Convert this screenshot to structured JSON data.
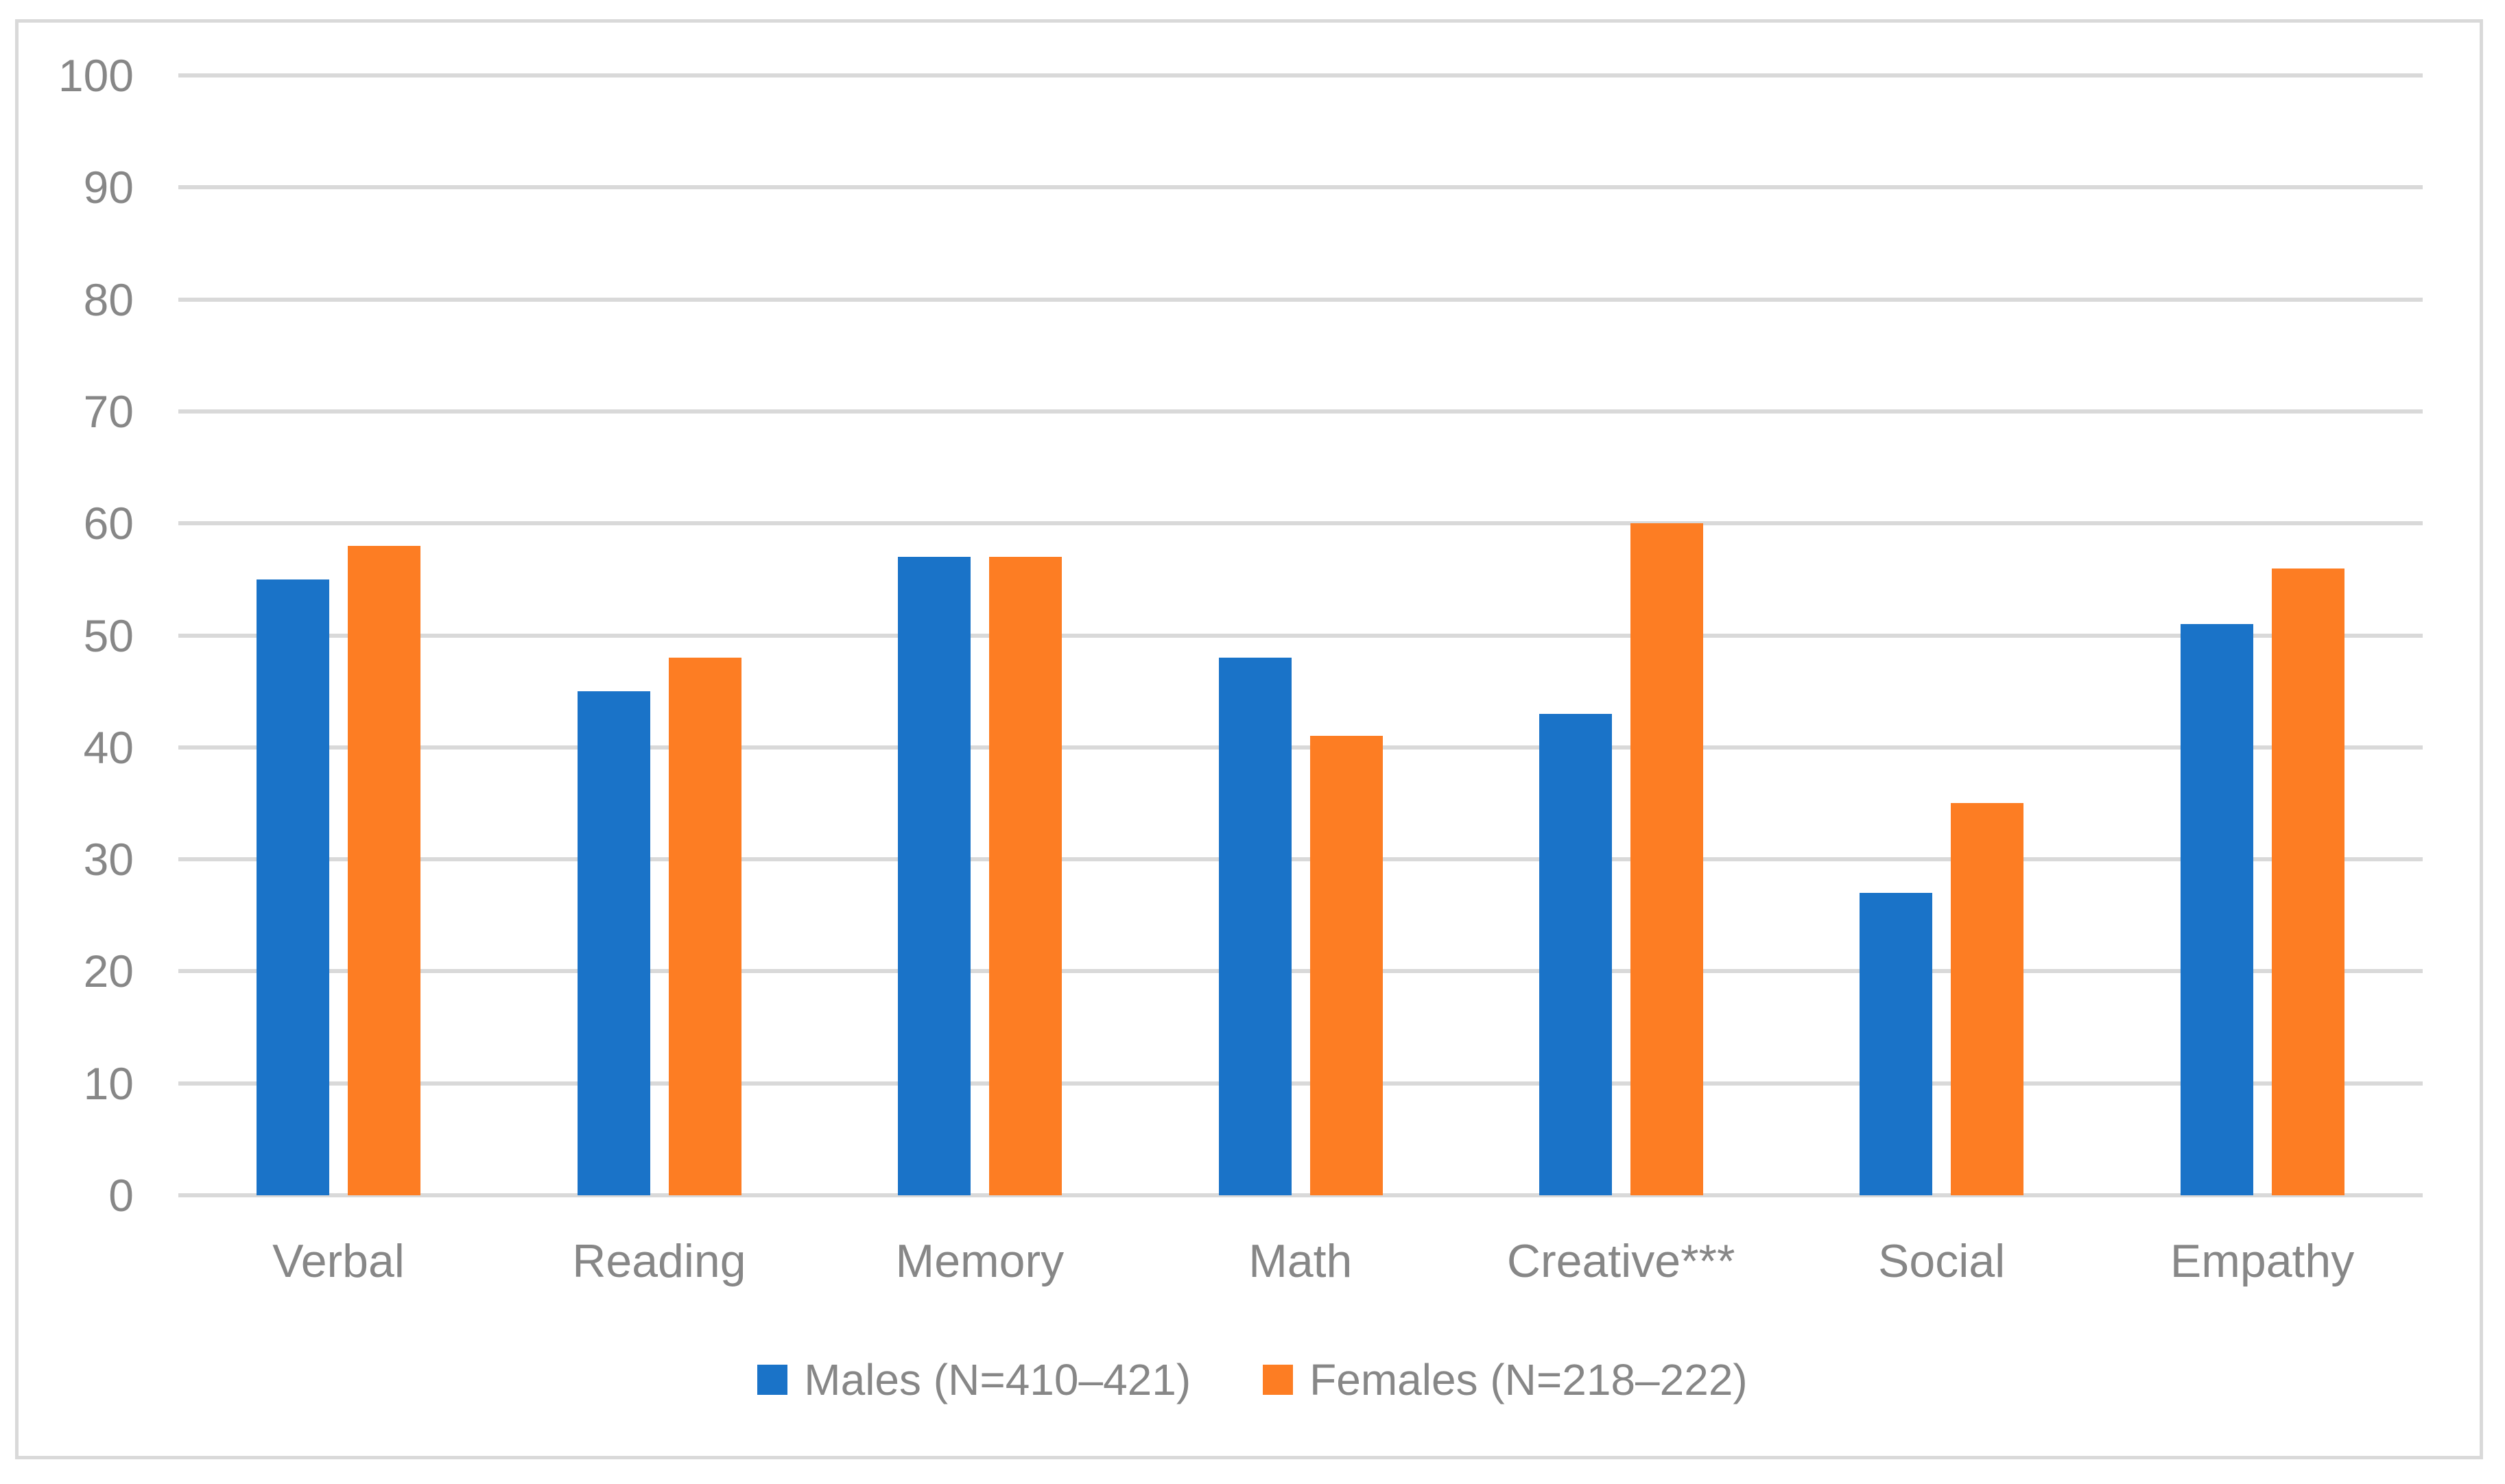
{
  "chart_data": {
    "type": "bar",
    "title": "",
    "xlabel": "",
    "ylabel": "",
    "categories": [
      "Verbal",
      "Reading",
      "Memory",
      "Math",
      "Creative***",
      "Social",
      "Empathy"
    ],
    "series": [
      {
        "name": "Males (N=410–421)",
        "color": "#1A73C8",
        "values": [
          55,
          45,
          57,
          48,
          43,
          27,
          51
        ]
      },
      {
        "name": "Females (N=218–222)",
        "color": "#FD7D23",
        "values": [
          58,
          48,
          57,
          41,
          60,
          35,
          56
        ]
      }
    ],
    "ylim": [
      0,
      100
    ],
    "yticks": [
      0,
      10,
      20,
      30,
      40,
      50,
      60,
      70,
      80,
      90,
      100
    ],
    "grid": true,
    "legend_position": "bottom"
  },
  "colors": {
    "gridline": "#D9D9D9",
    "frame_border": "#D9D9D9",
    "axis_text": "#878787",
    "background": "#FFFFFF"
  }
}
